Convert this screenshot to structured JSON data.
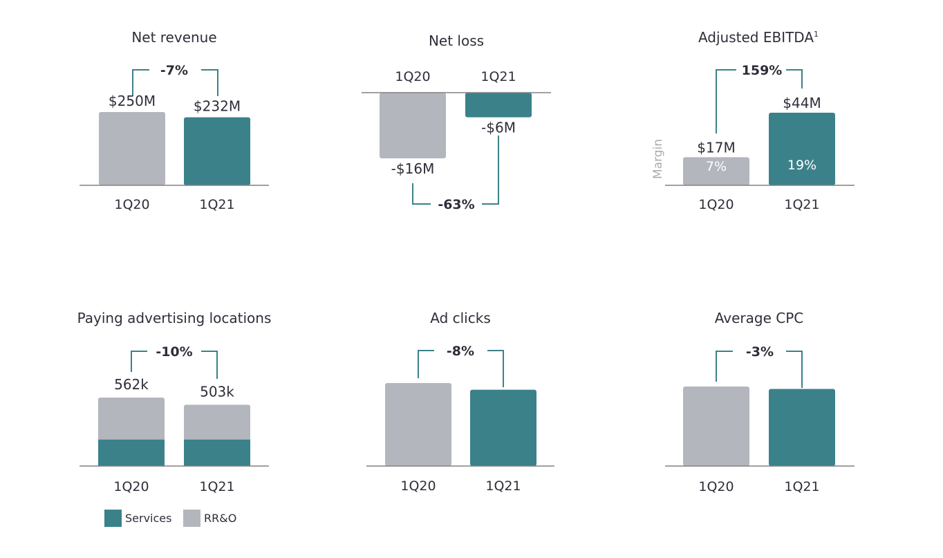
{
  "colors": {
    "prior": "#b3b6bd",
    "current": "#3b818a",
    "axis": "#808080",
    "text": "#2e2e3a",
    "margin_text": "#a9abb0",
    "bar_inner_text_prior": "#ffffff",
    "bar_inner_text_current": "#ffffff"
  },
  "chart_data": [
    {
      "id": "net-revenue",
      "type": "bar",
      "title": "Net revenue",
      "categories": [
        "1Q20",
        "1Q21"
      ],
      "values": [
        250,
        232
      ],
      "unit": "$M",
      "labels": [
        "$250M",
        "$232M"
      ],
      "change": "-7%"
    },
    {
      "id": "net-loss",
      "type": "bar",
      "title": "Net loss",
      "categories": [
        "1Q20",
        "1Q21"
      ],
      "values": [
        -16,
        -6
      ],
      "unit": "$M",
      "labels": [
        "-$16M",
        "-$6M"
      ],
      "change": "-63%"
    },
    {
      "id": "adjusted-ebitda",
      "type": "bar",
      "title": "Adjusted EBITDA",
      "title_superscript": "1",
      "categories": [
        "1Q20",
        "1Q21"
      ],
      "values": [
        17,
        44
      ],
      "unit": "$M",
      "labels": [
        "$17M",
        "$44M"
      ],
      "change": "159%",
      "margin_label": "Margin",
      "margins": [
        "7%",
        "19%"
      ]
    },
    {
      "id": "paying-advertising-locations",
      "type": "bar",
      "stacked": true,
      "title": "Paying advertising locations",
      "categories": [
        "1Q20",
        "1Q21"
      ],
      "totals": [
        562,
        503
      ],
      "labels": [
        "562k",
        "503k"
      ],
      "change": "-10%",
      "series": [
        {
          "name": "Services",
          "values": [
            217,
            217
          ]
        },
        {
          "name": "RR&O",
          "values": [
            345,
            286
          ]
        }
      ]
    },
    {
      "id": "ad-clicks",
      "type": "bar",
      "title": "Ad clicks",
      "categories": [
        "1Q20",
        "1Q21"
      ],
      "values": [
        100,
        92
      ],
      "change": "-8%"
    },
    {
      "id": "average-cpc",
      "type": "bar",
      "title": "Average CPC",
      "categories": [
        "1Q20",
        "1Q21"
      ],
      "values": [
        100,
        97
      ],
      "change": "-3%"
    }
  ]
}
